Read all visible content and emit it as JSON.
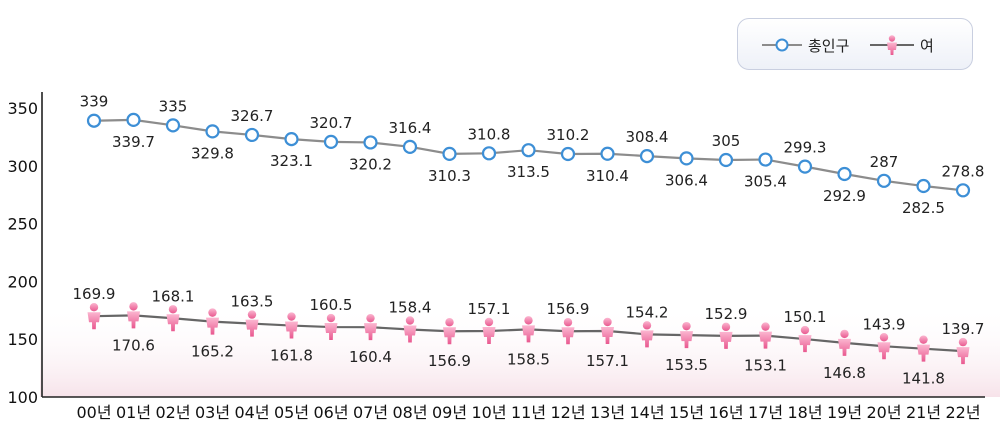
{
  "chart_data": {
    "type": "line",
    "categories": [
      "00년",
      "01년",
      "02년",
      "03년",
      "04년",
      "05년",
      "06년",
      "07년",
      "08년",
      "09년",
      "10년",
      "11년",
      "12년",
      "13년",
      "14년",
      "15년",
      "16년",
      "17년",
      "18년",
      "19년",
      "20년",
      "21년",
      "22년"
    ],
    "series": [
      {
        "name": "총인구",
        "values": [
          339,
          339.7,
          335,
          329.8,
          326.7,
          323.1,
          320.7,
          320.2,
          316.4,
          310.3,
          310.8,
          313.5,
          310.2,
          310.4,
          308.4,
          306.4,
          305,
          305.4,
          299.3,
          292.9,
          287,
          282.5,
          278.8
        ],
        "labels": [
          "339",
          "339.7",
          "335",
          "329.8",
          "326.7",
          "323.1",
          "320.7",
          "320.2",
          "316.4",
          "310.3",
          "310.8",
          "313.5",
          "310.2",
          "310.4",
          "308.4",
          "306.4",
          "305",
          "305.4",
          "299.3",
          "292.9",
          "287",
          "282.5",
          "278.8"
        ],
        "color": "#3d8fd6",
        "line_color": "#8c8c8c",
        "marker": "circle"
      },
      {
        "name": "여",
        "values": [
          169.9,
          170.6,
          168.1,
          165.2,
          163.5,
          161.8,
          160.5,
          160.4,
          158.4,
          156.9,
          157.1,
          158.5,
          156.9,
          157.1,
          154.2,
          153.5,
          152.9,
          153.1,
          150.1,
          146.8,
          143.9,
          141.8,
          139.7
        ],
        "labels": [
          "169.9",
          "170.6",
          "168.1",
          "165.2",
          "163.5",
          "161.8",
          "160.5",
          "160.4",
          "158.4",
          "156.9",
          "157.1",
          "158.5",
          "156.9",
          "157.1",
          "154.2",
          "153.5",
          "152.9",
          "153.1",
          "150.1",
          "146.8",
          "143.9",
          "141.8",
          "139.7"
        ],
        "color": "#f07aa8",
        "line_color": "#666666",
        "marker": "person"
      }
    ],
    "y_ticks": [
      "100",
      "150",
      "200",
      "250",
      "300",
      "350"
    ],
    "ylim": [
      100,
      350
    ],
    "legend_position": "top-right",
    "grid": false
  }
}
